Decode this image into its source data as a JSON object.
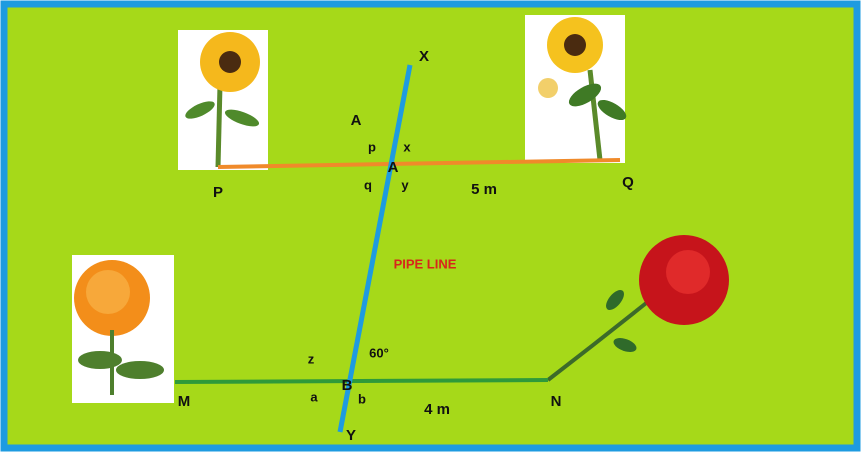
{
  "points": {
    "x_end": "X",
    "a_upper": "A",
    "a": "A",
    "p": "P",
    "q": "Q",
    "b": "B",
    "m": "M",
    "n": "N",
    "y_end": "Y"
  },
  "angles": {
    "p": "p",
    "x": "x",
    "q": "q",
    "y": "y",
    "z": "z",
    "a": "a",
    "b": "b",
    "given": "60°"
  },
  "lengths": {
    "aq": "5 m",
    "bn": "4 m"
  },
  "pipe_label": "PIPE LINE"
}
